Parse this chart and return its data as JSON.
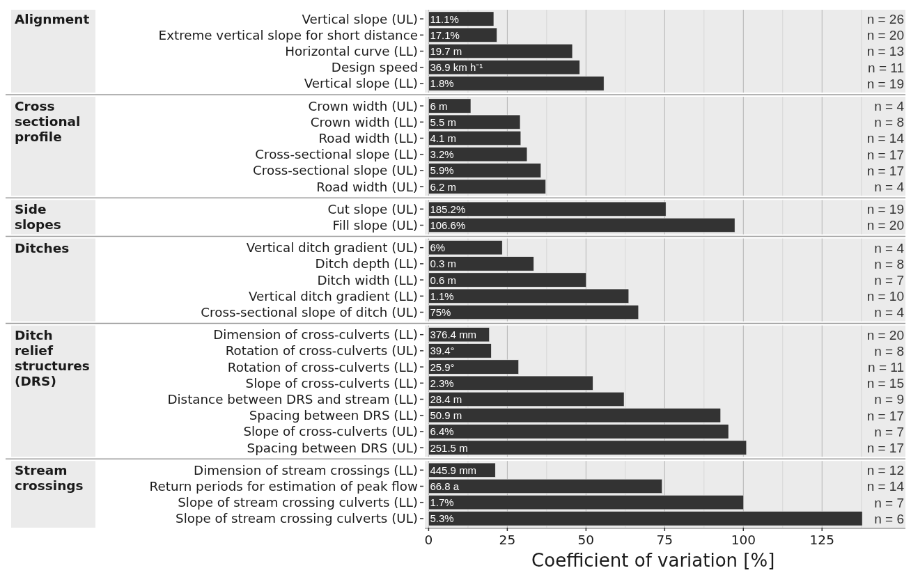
{
  "chart_data": [
    {
      "type": "bar",
      "orientation": "horizontal",
      "ylabel": "Alignment",
      "categories": [
        "Vertical slope (UL)",
        "Extreme vertical slope for short distance",
        "Horizontal curve (LL)",
        "Design speed",
        "Vertical slope (LL)"
      ],
      "values": [
        20.7,
        21.7,
        45.7,
        48.0,
        55.7
      ],
      "color": "#333333",
      "xlim": [
        -1.2,
        151.5
      ],
      "xticks": [
        0,
        25,
        50,
        75,
        100,
        125
      ],
      "grid": "x",
      "tick_labels": "y",
      "annotations": [
        "11.1%",
        "17.1%",
        "19.7 m",
        "36.9 km h⁻¹",
        "1.8%",
        "n = 26",
        "n = 20",
        "n = 13",
        "n = 11",
        "n = 19"
      ]
    },
    {
      "type": "bar",
      "orientation": "horizontal",
      "ylabel": "Cross sectional profile",
      "categories": [
        "Crown width (UL)",
        "Crown width (LL)",
        "Road width (LL)",
        "Cross-sectional slope (LL)",
        "Cross-sectional slope (UL)",
        "Road width (UL)"
      ],
      "values": [
        13.4,
        29.1,
        29.3,
        31.3,
        35.7,
        37.2
      ],
      "color": "#333333",
      "xlim": [
        -1.2,
        151.5
      ],
      "xticks": [
        0,
        25,
        50,
        75,
        100,
        125
      ],
      "grid": "x",
      "tick_labels": "y",
      "annotations": [
        "6 m",
        "5.5 m",
        "4.1 m",
        "3.2%",
        "5.9%",
        "6.2 m",
        "n = 4",
        "n = 8",
        "n = 14",
        "n = 17",
        "n = 17",
        "n = 4"
      ]
    },
    {
      "type": "bar",
      "orientation": "horizontal",
      "ylabel": "Side slopes",
      "categories": [
        "Cut slope (UL)",
        "Fill slope (UL)"
      ],
      "values": [
        75.4,
        97.3
      ],
      "color": "#333333",
      "xlim": [
        -1.2,
        151.5
      ],
      "xticks": [
        0,
        25,
        50,
        75,
        100,
        125
      ],
      "grid": "x",
      "tick_labels": "y",
      "annotations": [
        "185.2%",
        "106.6%",
        "n = 19",
        "n = 20"
      ]
    },
    {
      "type": "bar",
      "orientation": "horizontal",
      "ylabel": "Ditches",
      "categories": [
        "Vertical ditch gradient (UL)",
        "Ditch depth (LL)",
        "Ditch width (LL)",
        "Vertical ditch gradient (LL)",
        "Cross-sectional slope of ditch (UL)"
      ],
      "values": [
        23.4,
        33.4,
        50.1,
        63.6,
        66.7
      ],
      "color": "#333333",
      "xlim": [
        -1.2,
        151.5
      ],
      "xticks": [
        0,
        25,
        50,
        75,
        100,
        125
      ],
      "grid": "x",
      "tick_labels": "y",
      "annotations": [
        "6%",
        "0.3 m",
        "0.6 m",
        "1.1%",
        "75%",
        "n = 4",
        "n = 8",
        "n = 7",
        "n = 10",
        "n = 4"
      ]
    },
    {
      "type": "bar",
      "orientation": "horizontal",
      "ylabel": "Ditch relief structures (DRS)",
      "categories": [
        "Dimension of cross-culverts (LL)",
        "Rotation of cross-culverts (UL)",
        "Rotation of cross-culverts (LL)",
        "Slope of cross-culverts (LL)",
        "Distance between DRS and stream (LL)",
        "Spacing between DRS (LL)",
        "Slope of cross-culverts (UL)",
        "Spacing between DRS (UL)"
      ],
      "values": [
        19.3,
        19.9,
        28.6,
        52.2,
        62.1,
        92.8,
        95.3,
        101.0
      ],
      "color": "#333333",
      "xlim": [
        -1.2,
        151.5
      ],
      "xticks": [
        0,
        25,
        50,
        75,
        100,
        125
      ],
      "grid": "x",
      "tick_labels": "y",
      "annotations": [
        "376.4 mm",
        "39.4°",
        "25.9°",
        "2.3%",
        "28.4 m",
        "50.9 m",
        "6.4%",
        "251.5 m",
        "n = 20",
        "n = 8",
        "n = 11",
        "n = 15",
        "n = 9",
        "n = 17",
        "n = 7",
        "n = 17"
      ]
    },
    {
      "type": "bar",
      "orientation": "horizontal",
      "ylabel": "Stream crossings",
      "xlabel": "Coefficient of variation [%]",
      "categories": [
        "Dimension of stream crossings (LL)",
        "Return periods for estimation of peak flow",
        "Slope of stream crossing culverts (LL)",
        "Slope of stream crossing culverts (UL)"
      ],
      "values": [
        21.2,
        74.2,
        100.1,
        137.8
      ],
      "color": "#333333",
      "xlim": [
        -1.2,
        151.5
      ],
      "xticks": [
        0,
        25,
        50,
        75,
        100,
        125
      ],
      "grid": "x",
      "annotations": [
        "445.9 mm",
        "66.8 a",
        "1.7%",
        "5.3%",
        "n = 12",
        "n = 14",
        "n = 7",
        "n = 6"
      ]
    }
  ]
}
